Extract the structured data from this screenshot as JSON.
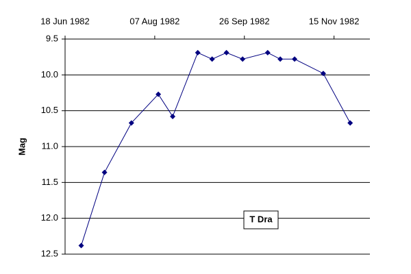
{
  "chart_data": {
    "type": "line",
    "ylabel": "Mag",
    "annotation": "T Dra",
    "x": [
      "1982-06-27",
      "1982-07-10",
      "1982-07-25",
      "1982-08-09",
      "1982-08-17",
      "1982-08-31",
      "1982-09-08",
      "1982-09-16",
      "1982-09-25",
      "1982-10-09",
      "1982-10-16",
      "1982-10-24",
      "1982-11-09",
      "1982-11-24"
    ],
    "values": [
      12.38,
      11.36,
      10.67,
      10.27,
      10.58,
      9.69,
      9.78,
      9.69,
      9.78,
      9.69,
      9.78,
      9.78,
      9.98,
      10.67
    ],
    "color": "#000080",
    "xlim": [
      "1982-06-18",
      "1982-12-05"
    ],
    "xticks": [
      {
        "value": "1982-06-18",
        "label": "18 Jun 1982"
      },
      {
        "value": "1982-08-07",
        "label": "07 Aug 1982"
      },
      {
        "value": "1982-09-26",
        "label": "26 Sep 1982"
      },
      {
        "value": "1982-11-15",
        "label": "15 Nov 1982"
      }
    ],
    "ylim": [
      9.5,
      12.5
    ],
    "yticks": [
      9.5,
      {
        "value": 10,
        "label": "10.0"
      },
      10.5,
      {
        "value": 11,
        "label": "11.0"
      },
      11.5,
      {
        "value": 12,
        "label": "12.0"
      },
      12.5
    ],
    "y_inverted": true,
    "x_axis_position": "top",
    "grid": true
  }
}
